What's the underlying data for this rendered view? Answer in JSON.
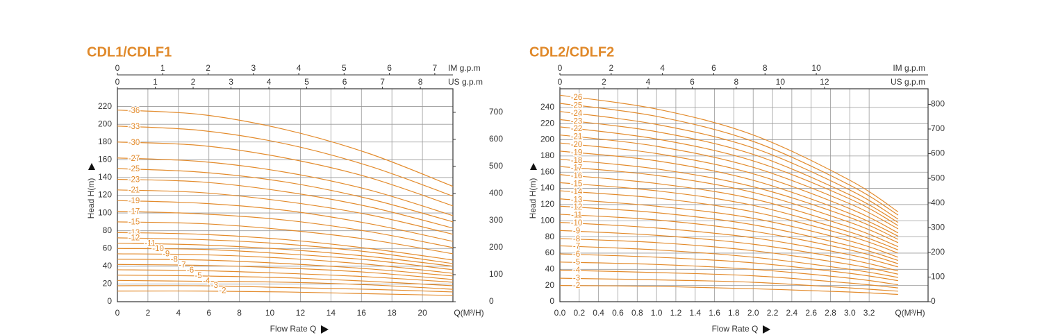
{
  "chart_data": [
    {
      "type": "line",
      "title": "CDL1/CDLF1",
      "ylabel": "Head H(m)",
      "xlabel": "Flow Rate Q",
      "x_unit": "Q(M³/H)",
      "color": "#e38b2c",
      "grid": true,
      "xlim": [
        0,
        22
      ],
      "xticks": [
        0,
        2,
        4,
        6,
        8,
        10,
        12,
        14,
        16,
        18,
        20
      ],
      "ylim": [
        0,
        240
      ],
      "yticks": [
        0,
        20,
        40,
        60,
        80,
        100,
        120,
        140,
        160,
        180,
        200,
        220
      ],
      "y2lim": [
        0,
        787
      ],
      "y2ticks": [
        0,
        100,
        200,
        300,
        400,
        500,
        600,
        700
      ],
      "top_axes": [
        {
          "label": "IM g.p.m",
          "lim": [
            0,
            7.4
          ],
          "ticks": [
            0,
            1,
            2,
            3,
            4,
            5,
            6,
            7
          ]
        },
        {
          "label": "US g.p.m",
          "lim": [
            0,
            8.86
          ],
          "ticks": [
            0,
            1,
            2,
            3,
            4,
            5,
            6,
            7,
            8
          ]
        }
      ],
      "x": [
        0,
        5.5,
        11,
        16.5,
        22
      ],
      "series": [
        {
          "name": "-36",
          "values": [
            216,
            211,
            194,
            167,
            130
          ]
        },
        {
          "name": "-33",
          "values": [
            198,
            193,
            178,
            153,
            119
          ]
        },
        {
          "name": "-30",
          "values": [
            180,
            176,
            162,
            140,
            108
          ]
        },
        {
          "name": "-27",
          "values": [
            162,
            158,
            146,
            126,
            97
          ]
        },
        {
          "name": "-25",
          "values": [
            150,
            146,
            135,
            116,
            90
          ]
        },
        {
          "name": "-23",
          "values": [
            138,
            135,
            124,
            107,
            83
          ]
        },
        {
          "name": "-21",
          "values": [
            126,
            123,
            113,
            98,
            76
          ]
        },
        {
          "name": "-19",
          "values": [
            114,
            111,
            103,
            88,
            68
          ]
        },
        {
          "name": "-17",
          "values": [
            102,
            99,
            92,
            79,
            61
          ]
        },
        {
          "name": "-15",
          "values": [
            90,
            88,
            81,
            70,
            54
          ]
        },
        {
          "name": "-13",
          "values": [
            78,
            76,
            70,
            60,
            47
          ]
        },
        {
          "name": "-12",
          "values": [
            72,
            70,
            65,
            56,
            43
          ]
        },
        {
          "name": "-11",
          "values": [
            66,
            64,
            59,
            51,
            40
          ]
        },
        {
          "name": "-10",
          "values": [
            60,
            59,
            54,
            47,
            36
          ]
        },
        {
          "name": "-9",
          "values": [
            54,
            53,
            49,
            42,
            32
          ]
        },
        {
          "name": "-8",
          "values": [
            48,
            47,
            43,
            37,
            29
          ]
        },
        {
          "name": "-7",
          "values": [
            42,
            41,
            38,
            33,
            25
          ]
        },
        {
          "name": "-6",
          "values": [
            36,
            35,
            32,
            28,
            22
          ]
        },
        {
          "name": "-5",
          "values": [
            30,
            29,
            27,
            23,
            18
          ]
        },
        {
          "name": "-4",
          "values": [
            24,
            23,
            22,
            19,
            14
          ]
        },
        {
          "name": "-3",
          "values": [
            18,
            18,
            16,
            14,
            11
          ]
        },
        {
          "name": "-2",
          "values": [
            12,
            12,
            11,
            9,
            7
          ]
        }
      ]
    },
    {
      "type": "line",
      "title": "CDL2/CDLF2",
      "ylabel": "Head H(m)",
      "xlabel": "Flow Rate Q",
      "x_unit": "Q(M³/H)",
      "color": "#e38b2c",
      "grid": true,
      "xlim": [
        0,
        3.81
      ],
      "xticks": [
        {
          "value": 0,
          "label": "0.0"
        },
        0.2,
        0.4,
        0.6,
        0.8,
        {
          "value": 1,
          "label": "1.0"
        },
        1.2,
        1.4,
        1.6,
        1.8,
        {
          "value": 2,
          "label": "2.0"
        },
        2.2,
        2.4,
        2.6,
        2.8,
        {
          "value": 3,
          "label": "3.0"
        },
        3.2
      ],
      "ylim": [
        0,
        263
      ],
      "yticks": [
        0,
        20,
        40,
        60,
        80,
        100,
        120,
        140,
        160,
        180,
        200,
        220,
        240
      ],
      "y2lim": [
        0,
        863
      ],
      "y2ticks": [
        0,
        100,
        200,
        300,
        400,
        500,
        600,
        700,
        800
      ],
      "top_axes": [
        {
          "label": "IM g.p.m",
          "lim": [
            0,
            14.36
          ],
          "ticks": [
            0,
            2,
            4,
            6,
            8,
            10
          ]
        },
        {
          "label": "US g.p.m",
          "lim": [
            0,
            16.7
          ],
          "ticks": [
            0,
            2,
            4,
            6,
            8,
            10,
            12
          ]
        }
      ],
      "x": [
        0,
        1,
        2,
        3,
        3.5
      ],
      "series": [
        {
          "name": "-26",
          "values": [
            255,
            238,
            206,
            150,
            111
          ]
        },
        {
          "name": "-25",
          "values": [
            245,
            229,
            198,
            144,
            107
          ]
        },
        {
          "name": "-24",
          "values": [
            235,
            219,
            190,
            138,
            102
          ]
        },
        {
          "name": "-23",
          "values": [
            225,
            210,
            182,
            132,
            98
          ]
        },
        {
          "name": "-22",
          "values": [
            216,
            201,
            174,
            127,
            94
          ]
        },
        {
          "name": "-21",
          "values": [
            206,
            192,
            166,
            121,
            90
          ]
        },
        {
          "name": "-20",
          "values": [
            196,
            183,
            158,
            115,
            85
          ]
        },
        {
          "name": "-19",
          "values": [
            186,
            174,
            150,
            109,
            81
          ]
        },
        {
          "name": "-18",
          "values": [
            176,
            164,
            142,
            104,
            77
          ]
        },
        {
          "name": "-17",
          "values": [
            167,
            156,
            135,
            98,
            73
          ]
        },
        {
          "name": "-16",
          "values": [
            157,
            146,
            127,
            92,
            68
          ]
        },
        {
          "name": "-15",
          "values": [
            147,
            137,
            119,
            86,
            64
          ]
        },
        {
          "name": "-14",
          "values": [
            137,
            128,
            111,
            81,
            60
          ]
        },
        {
          "name": "-13",
          "values": [
            127,
            118,
            103,
            75,
            55
          ]
        },
        {
          "name": "-12",
          "values": [
            118,
            110,
            95,
            69,
            51
          ]
        },
        {
          "name": "-11",
          "values": [
            108,
            101,
            87,
            64,
            47
          ]
        },
        {
          "name": "-10",
          "values": [
            98,
            91,
            79,
            58,
            43
          ]
        },
        {
          "name": "-9",
          "values": [
            88,
            82,
            71,
            52,
            38
          ]
        },
        {
          "name": "-8",
          "values": [
            78,
            73,
            63,
            46,
            34
          ]
        },
        {
          "name": "-7",
          "values": [
            69,
            64,
            55,
            40,
            30
          ]
        },
        {
          "name": "-6",
          "values": [
            59,
            55,
            48,
            35,
            26
          ]
        },
        {
          "name": "-5",
          "values": [
            49,
            46,
            40,
            29,
            21
          ]
        },
        {
          "name": "-4",
          "values": [
            39,
            36,
            32,
            23,
            17
          ]
        },
        {
          "name": "-3",
          "values": [
            29,
            27,
            24,
            17,
            13
          ]
        },
        {
          "name": "-2",
          "values": [
            20,
            19,
            16,
            12,
            9
          ]
        }
      ]
    }
  ]
}
